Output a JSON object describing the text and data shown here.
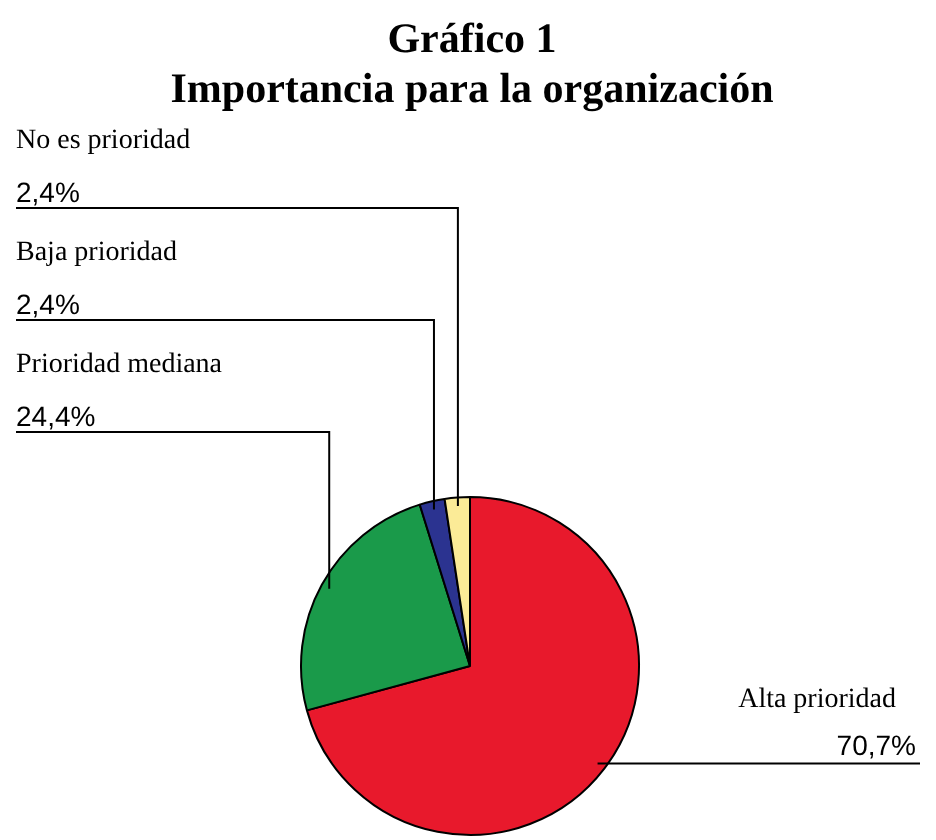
{
  "chart_data": {
    "type": "pie",
    "title": "Gráfico 1",
    "subtitle": "Importancia para la organización",
    "categories": [
      "Alta prioridad",
      "Prioridad mediana",
      "Baja prioridad",
      "No es prioridad"
    ],
    "values": [
      70.7,
      24.4,
      2.4,
      2.4
    ],
    "colors": [
      "#e8192c",
      "#1a9a4a",
      "#2b3390",
      "#fbeb97"
    ],
    "value_labels": [
      "70,7%",
      "24,4%",
      "2,4%",
      "2,4%"
    ]
  }
}
